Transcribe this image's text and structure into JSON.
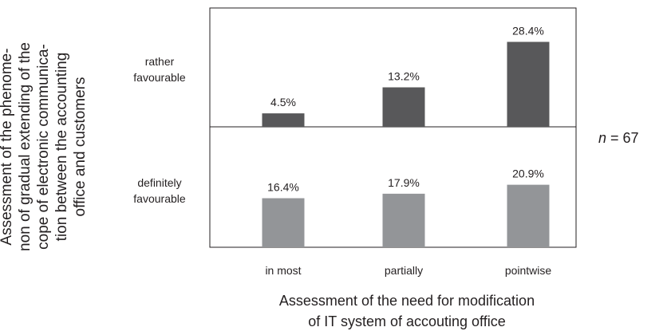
{
  "chart_data": {
    "type": "bar",
    "categories": [
      "in most",
      "partially",
      "pointwise"
    ],
    "series": [
      {
        "name": "rather favourable",
        "values": [
          4.5,
          13.2,
          28.4
        ],
        "labels": [
          "4.5%",
          "13.2%",
          "28.4%"
        ],
        "color": "#58585a"
      },
      {
        "name": "definitely favourable",
        "values": [
          16.4,
          17.9,
          20.9
        ],
        "labels": [
          "16.4%",
          "17.9%",
          "20.9%"
        ],
        "color": "#939598"
      }
    ],
    "panels": [
      "rather favourable",
      "definitely favourable"
    ],
    "panel_labels": [
      [
        "rather",
        "favourable"
      ],
      [
        "definitely",
        "favourable"
      ]
    ],
    "ylim": [
      0,
      30
    ],
    "xlabel_lines": [
      "Assessment of the need for modification",
      "of IT system of accouting office"
    ],
    "ylabel_lines": [
      "Assessment of the phenome-",
      "non of gradual extending of the",
      "cope of electronic communica-",
      "tion between the accounting",
      "office and customers"
    ],
    "annotation": {
      "prefix": "n",
      "suffix": " = 67"
    },
    "grid": false,
    "legend": "none"
  }
}
